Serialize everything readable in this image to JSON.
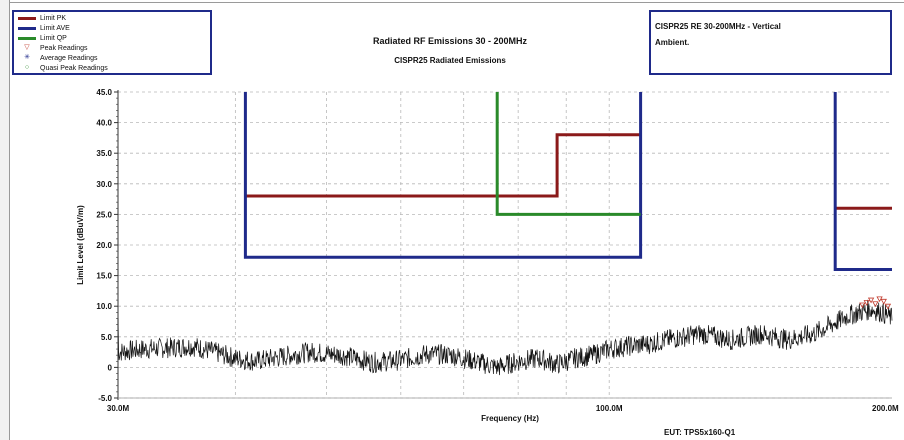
{
  "legend": {
    "items": [
      {
        "label": "Limit PK",
        "kind": "line",
        "color": "#8b1a1a"
      },
      {
        "label": "Limit AVE",
        "kind": "line",
        "color": "#1f2a8a"
      },
      {
        "label": "Limit QP",
        "kind": "line",
        "color": "#2a8a2a"
      },
      {
        "label": "Peak Readings",
        "kind": "marker",
        "symbol": "▽",
        "color": "#c0392b"
      },
      {
        "label": "Average Readings",
        "kind": "marker",
        "symbol": "✳",
        "color": "#1f2a8a"
      },
      {
        "label": "Quasi Peak Readings",
        "kind": "marker",
        "symbol": "○",
        "color": "#2a8a2a"
      }
    ]
  },
  "info": {
    "line1": "CISPR25 RE 30-200MHz - Vertical",
    "line2": "Ambient."
  },
  "eut": "EUT: TPS5x160-Q1",
  "chart_data": {
    "type": "line",
    "title": "Radiated RF Emissions 30 - 200MHz",
    "subtitle": "CISPR25 Radiated Emissions",
    "xlabel": "Frequency (Hz)",
    "ylabel": "Limit Level (dBuV/m)",
    "x_scale": "log",
    "xlim": [
      30,
      200
    ],
    "ylim": [
      -5,
      45
    ],
    "x_tick_labels": [
      {
        "value": 30,
        "label": "30.0M"
      },
      {
        "value": 100,
        "label": "100.0M"
      },
      {
        "value": 200,
        "label": "200.0M"
      }
    ],
    "y_ticks": [
      45,
      40,
      35,
      30,
      25,
      20,
      15,
      10,
      5,
      0,
      -5
    ],
    "y_tick_labels": [
      "45.0",
      "40.0",
      "35.0",
      "30.0",
      "25.0",
      "20.0",
      "15.0",
      "10.0",
      "5.0",
      "0",
      "-5.0"
    ],
    "x_grid_minor": [
      40,
      50,
      60,
      70,
      80,
      90
    ],
    "x_grid_major": [
      30,
      100,
      200
    ],
    "series": [
      {
        "name": "Limit PK",
        "color": "#8b1a1a",
        "segments": [
          {
            "x": [
              41,
              88,
              88,
              108
            ],
            "y": [
              28,
              28,
              38,
              38
            ]
          },
          {
            "x": [
              174,
              200
            ],
            "y": [
              26,
              26
            ]
          }
        ]
      },
      {
        "name": "Limit AVE",
        "color": "#1f2a8a",
        "segments": [
          {
            "x": [
              41,
              41,
              108,
              108
            ],
            "y": [
              45,
              18,
              18,
              45
            ]
          },
          {
            "x": [
              174,
              174,
              200
            ],
            "y": [
              45,
              16,
              16
            ]
          }
        ]
      },
      {
        "name": "Limit QP",
        "color": "#2a8a2a",
        "segments": [
          {
            "x": [
              76,
              76,
              108
            ],
            "y": [
              45,
              25,
              25
            ]
          }
        ]
      }
    ],
    "measurement": {
      "name": "Measurement",
      "color": "#111111",
      "x": [
        30,
        32,
        34,
        36,
        38,
        40,
        42,
        45,
        48,
        52,
        56,
        60,
        64,
        68,
        72,
        76,
        80,
        84,
        88,
        92,
        96,
        100,
        105,
        110,
        115,
        120,
        125,
        130,
        135,
        140,
        145,
        150,
        155,
        160,
        165,
        170,
        175,
        180,
        185,
        190,
        195,
        200
      ],
      "y": [
        2.5,
        3.0,
        3.2,
        3.5,
        2.5,
        1.5,
        1.0,
        1.8,
        2.5,
        2.0,
        0.8,
        1.2,
        2.2,
        2.0,
        1.0,
        0.0,
        1.0,
        1.5,
        0.5,
        1.5,
        2.0,
        3.0,
        3.5,
        3.8,
        4.5,
        5.0,
        5.5,
        5.0,
        4.5,
        5.0,
        5.5,
        5.0,
        4.5,
        5.0,
        5.5,
        6.5,
        7.5,
        8.5,
        9.0,
        9.5,
        9.0,
        8.0
      ]
    },
    "peak_readings": {
      "x": [
        186,
        188,
        190,
        192,
        194,
        196,
        198
      ],
      "y": [
        10.2,
        10.6,
        11.0,
        10.4,
        11.2,
        10.8,
        10.0
      ]
    }
  }
}
